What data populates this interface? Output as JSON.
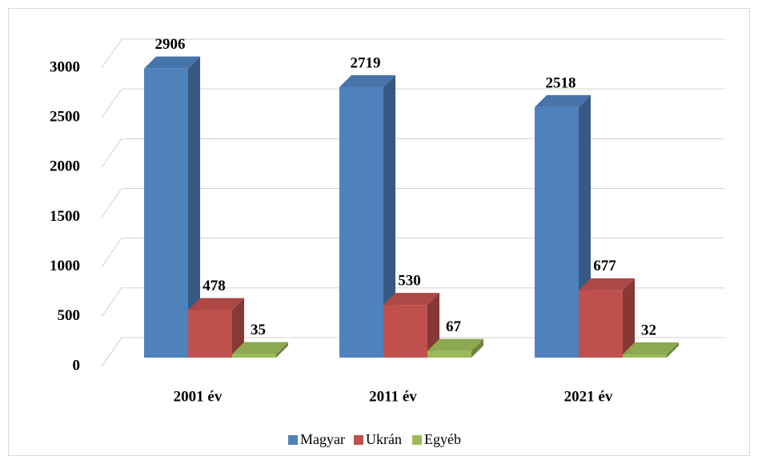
{
  "chart_data": {
    "type": "bar3d",
    "categories": [
      "2001 év",
      "2011 év",
      "2021 év"
    ],
    "series": [
      {
        "name": "Magyar",
        "color": "#4f81bd",
        "values": [
          2906,
          2719,
          2518
        ]
      },
      {
        "name": "Ukrán",
        "color": "#c0504d",
        "values": [
          478,
          530,
          677
        ]
      },
      {
        "name": "Egyéb",
        "color": "#9bbb59",
        "values": [
          35,
          67,
          32
        ]
      }
    ],
    "ylim": [
      0,
      3000
    ],
    "yticks": [
      0,
      500,
      1000,
      1500,
      2000,
      2500,
      3000
    ],
    "grid": true,
    "legend": "bottom"
  }
}
